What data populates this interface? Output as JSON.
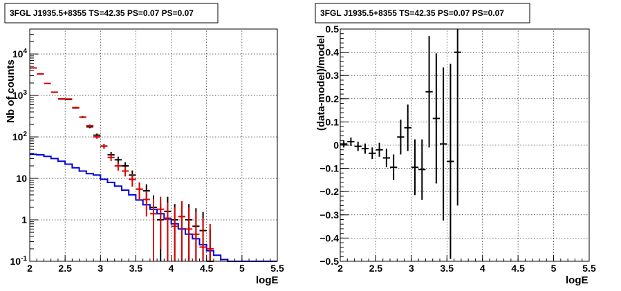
{
  "chart_data": [
    {
      "type": "histogram",
      "title": "3FGL J1935.5+8355 TS=42.35 PS=0.07 PS=0.07",
      "xlabel": "logE",
      "ylabel": "Nb of counts",
      "xlim": [
        2,
        5.5
      ],
      "ylim": [
        0.1,
        40000
      ],
      "yscale": "log",
      "grid": true,
      "x_ticks": [
        "2",
        "2.5",
        "3",
        "3.5",
        "4",
        "4.5",
        "5",
        "5.5"
      ],
      "y_ticks": [
        "10⁻¹",
        "1",
        "10",
        "10²",
        "10³",
        "10⁴"
      ],
      "bin_edges": [
        2.0,
        2.1,
        2.2,
        2.3,
        2.4,
        2.5,
        2.6,
        2.7,
        2.8,
        2.9,
        3.0,
        3.1,
        3.2,
        3.3,
        3.4,
        3.5,
        3.6,
        3.7,
        3.8,
        3.9,
        4.0,
        4.1,
        4.2,
        4.3,
        4.4,
        4.5,
        4.6,
        4.7,
        4.8,
        4.9,
        5.0,
        5.1,
        5.2,
        5.3,
        5.4,
        5.5
      ],
      "series": [
        {
          "name": "",
          "style": "blue-step",
          "color": "#0000dd",
          "values": [
            38,
            37,
            34,
            30,
            26,
            22,
            18,
            15,
            13,
            12,
            9.5,
            8,
            6.5,
            5.2,
            4,
            3,
            2.3,
            1.8,
            1.4,
            1.05,
            0.8,
            0.6,
            0.45,
            0.35,
            0.25,
            0.18,
            0.14,
            0.11,
            0.1,
            0.1,
            0.1,
            0.1,
            0.1,
            0.1,
            0.1
          ]
        },
        {
          "name": "",
          "style": "red-crosses",
          "color": "#dd0000",
          "x": [
            2.05,
            2.15,
            2.25,
            2.35,
            2.45,
            2.55,
            2.65,
            2.75,
            2.85,
            2.95,
            3.05,
            3.15,
            3.25,
            3.35,
            3.45,
            3.55,
            3.65,
            3.75,
            3.85,
            3.95,
            4.05,
            4.15,
            4.25,
            4.35,
            4.45,
            4.55
          ],
          "y": [
            4600,
            3300,
            1950,
            1200,
            830,
            820,
            510,
            300,
            185,
            100,
            60,
            32,
            20,
            15,
            9.5,
            5.5,
            3.1,
            1.4,
            1.8,
            1.1,
            0.7,
            1.2,
            0.6,
            0.45,
            0.22,
            0.2
          ],
          "yerr_low": [
            70,
            57,
            45,
            35,
            29,
            29,
            23,
            17,
            14,
            10,
            8,
            6,
            4.6,
            3.9,
            3.2,
            2.5,
            1.9,
            1.3,
            1.6,
            1.0,
            0.62,
            1.1,
            0.55,
            0.41,
            0.2,
            0.18
          ],
          "yerr_high": [
            70,
            57,
            45,
            35,
            29,
            29,
            23,
            17,
            14,
            10,
            8,
            6,
            4.6,
            3.9,
            3.2,
            2.5,
            1.9,
            1.8,
            1.8,
            1.5,
            1.3,
            1.6,
            1.4,
            1.1,
            0.9,
            0.6
          ]
        },
        {
          "name": "",
          "style": "black-crosses",
          "color": "#000000",
          "x": [
            2.45,
            2.55,
            2.65,
            2.75,
            2.85,
            2.95,
            3.05,
            3.15,
            3.25,
            3.35,
            3.45,
            3.55,
            3.65,
            3.75,
            3.85,
            3.95,
            4.05,
            4.15,
            4.25,
            4.35,
            4.45,
            4.55
          ],
          "y": [
            820,
            800,
            500,
            300,
            175,
            110,
            60,
            37,
            28,
            20,
            12,
            5.5,
            5,
            2,
            1,
            1.6,
            1,
            1.2,
            1,
            0.7,
            0.55,
            0.1
          ],
          "yerr_low": [
            29,
            28,
            22,
            17,
            13,
            10.5,
            7.7,
            6,
            5.3,
            4.5,
            3.5,
            2.3,
            2.2,
            1.9,
            0.9,
            1.5,
            0.9,
            1.1,
            0.9,
            0.6,
            0.5,
            0
          ],
          "yerr_high": [
            29,
            28,
            22,
            17,
            13,
            10.5,
            7.7,
            6,
            5.3,
            4.5,
            3.5,
            2.3,
            2.2,
            1.9,
            1.4,
            2,
            1.4,
            1.6,
            1.4,
            1.2,
            1,
            0.5
          ]
        }
      ]
    },
    {
      "type": "scatter",
      "title": "3FGL J1935.5+8355 TS=42.35 PS=0.07 PS=0.07",
      "xlabel": "logE",
      "ylabel": "(data-model)/model",
      "xlim": [
        2,
        5.5
      ],
      "ylim": [
        -0.5,
        0.5
      ],
      "grid": true,
      "x_ticks": [
        "2",
        "2.5",
        "3",
        "3.5",
        "4",
        "4.5",
        "5",
        "5.5"
      ],
      "y_ticks": [
        "−0.5",
        "−0.4",
        "−0.3",
        "−0.2",
        "−0.1",
        "0",
        "0.1",
        "0.2",
        "0.3",
        "0.4",
        "0.5"
      ],
      "series": [
        {
          "name": "",
          "color": "#000000",
          "x": [
            2.05,
            2.15,
            2.25,
            2.35,
            2.45,
            2.55,
            2.65,
            2.75,
            2.85,
            2.95,
            3.05,
            3.15,
            3.25,
            3.35,
            3.45,
            3.55,
            3.65
          ],
          "y": [
            0.005,
            0.015,
            -0.005,
            -0.015,
            -0.035,
            -0.02,
            -0.055,
            -0.095,
            0.035,
            0.075,
            -0.095,
            -0.105,
            0.23,
            0.115,
            0.005,
            -0.07,
            0.4
          ],
          "yerr": [
            0.015,
            0.018,
            0.02,
            0.022,
            0.025,
            0.03,
            0.04,
            0.055,
            0.075,
            0.1,
            0.12,
            0.13,
            0.24,
            0.28,
            0.33,
            0.42,
            0.66
          ]
        }
      ]
    }
  ]
}
